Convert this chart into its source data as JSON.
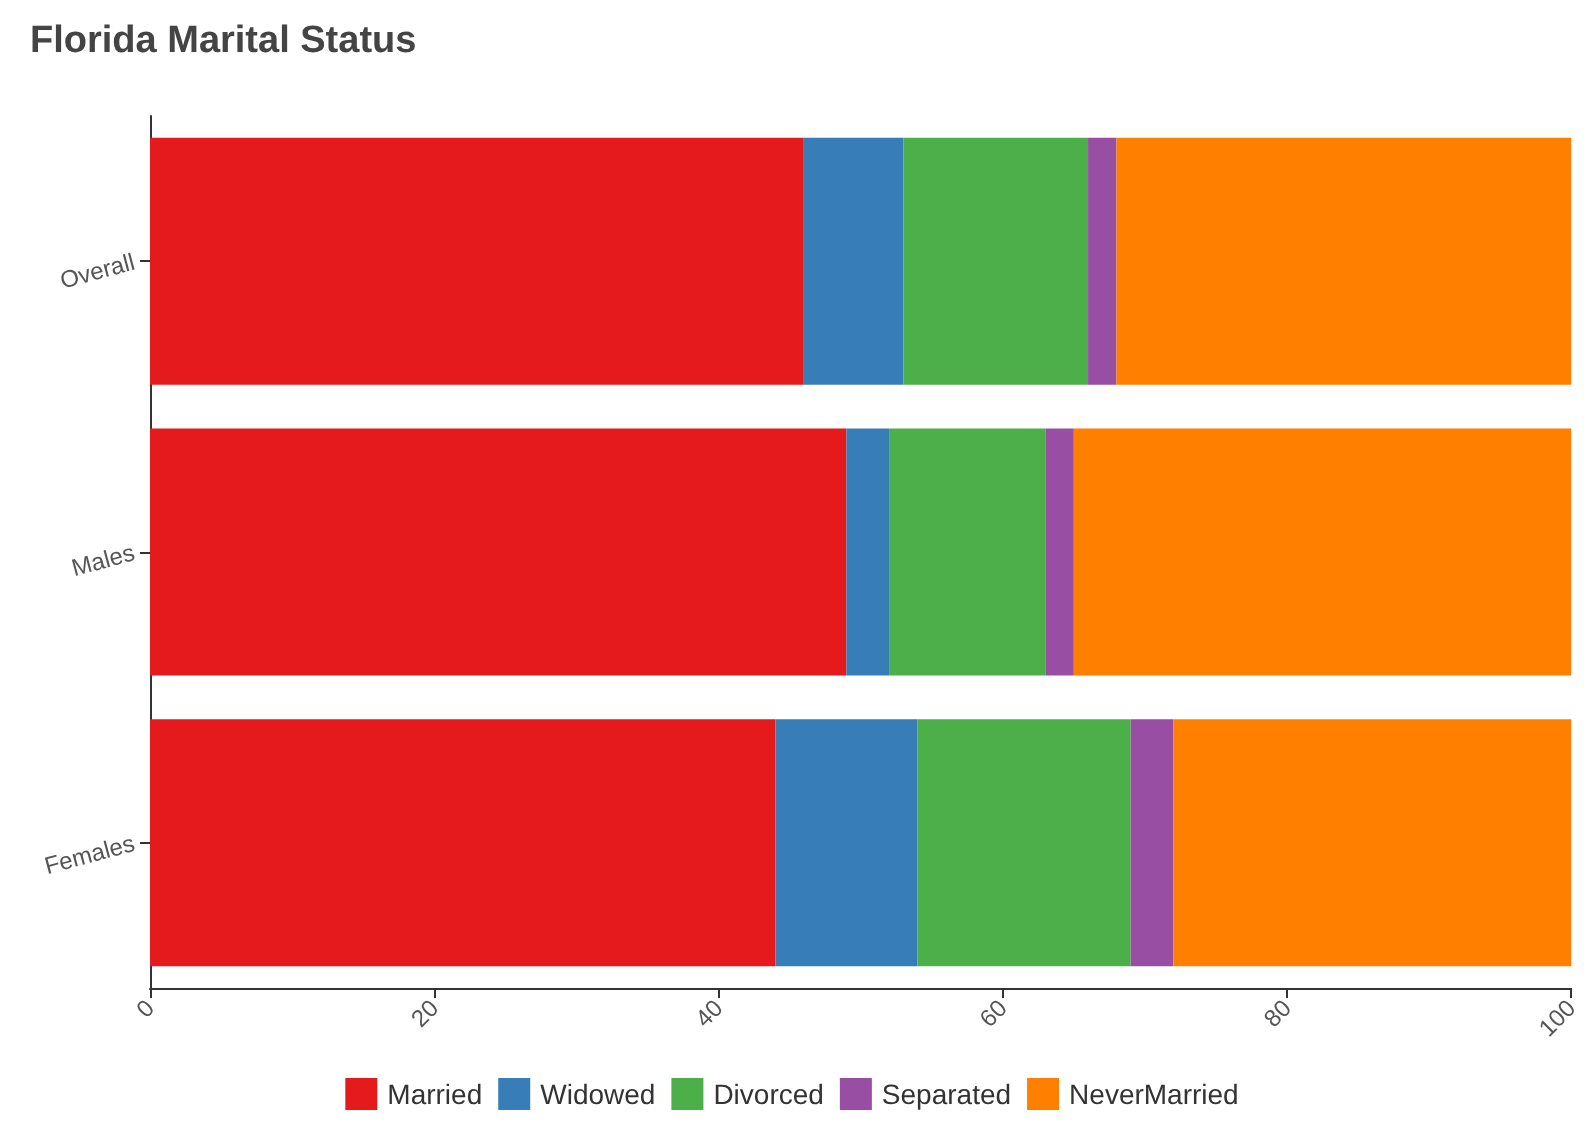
{
  "chart_data": {
    "type": "bar",
    "title": "Florida Marital Status",
    "orientation": "horizontal",
    "stacked": true,
    "categories": [
      "Overall",
      "Males",
      "Females"
    ],
    "series": [
      {
        "name": "Married",
        "color": "#e41a1c",
        "values": [
          46,
          49,
          44
        ]
      },
      {
        "name": "Widowed",
        "color": "#377eb8",
        "values": [
          7,
          3,
          10
        ]
      },
      {
        "name": "Divorced",
        "color": "#4daf4a",
        "values": [
          13,
          11,
          15
        ]
      },
      {
        "name": "Separated",
        "color": "#984ea3",
        "values": [
          2,
          2,
          3
        ]
      },
      {
        "name": "NeverMarried",
        "color": "#ff7f00",
        "values": [
          32,
          35,
          28
        ]
      }
    ],
    "xlim": [
      0,
      100
    ],
    "xticks": [
      0,
      20,
      40,
      60,
      80,
      100
    ],
    "grid": false,
    "legend": "bottom"
  }
}
